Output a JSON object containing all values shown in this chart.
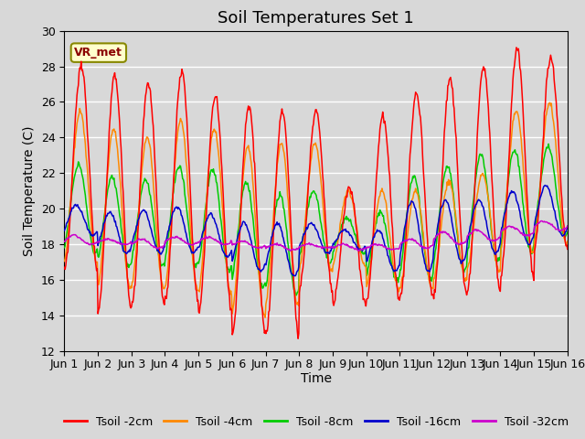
{
  "title": "Soil Temperatures Set 1",
  "xlabel": "Time",
  "ylabel": "Soil Temperature (C)",
  "ylim": [
    12,
    30
  ],
  "yticks": [
    12,
    14,
    16,
    18,
    20,
    22,
    24,
    26,
    28,
    30
  ],
  "xlim": [
    0,
    15
  ],
  "xtick_labels": [
    "Jun 1",
    "Jun 2",
    "Jun 3",
    "Jun 4",
    "Jun 5",
    "Jun 6",
    "Jun 7",
    "Jun 8",
    "Jun 9",
    "Jun 10",
    "Jun 11",
    "Jun 12",
    "Jun 13",
    "Jun 14",
    "Jun 15",
    "Jun 16"
  ],
  "annotation_text": "VR_met",
  "background_color": "#d8d8d8",
  "plot_bg_color": "#d8d8d8",
  "grid_color": "#ffffff",
  "series_colors": [
    "#ff0000",
    "#ff8800",
    "#00cc00",
    "#0000cc",
    "#cc00cc"
  ],
  "series_labels": [
    "Tsoil -2cm",
    "Tsoil -4cm",
    "Tsoil -8cm",
    "Tsoil -16cm",
    "Tsoil -32cm"
  ],
  "title_fontsize": 13,
  "label_fontsize": 10,
  "tick_fontsize": 9,
  "day_peaks_2cm": [
    28.0,
    27.5,
    27.0,
    27.7,
    26.3,
    25.8,
    25.5,
    25.5,
    21.2,
    25.2,
    26.5,
    27.3,
    28.0,
    29.0,
    28.5
  ],
  "day_mins_2cm": [
    16.5,
    14.3,
    14.5,
    14.8,
    14.2,
    13.0,
    12.9,
    15.5,
    14.7,
    14.8,
    15.0,
    15.2,
    15.4,
    16.2,
    17.8
  ],
  "day_peaks_4cm": [
    25.5,
    24.5,
    24.0,
    25.0,
    24.5,
    23.5,
    23.7,
    23.7,
    21.0,
    21.0,
    21.0,
    21.5,
    22.0,
    25.5,
    26.0
  ],
  "day_mins_4cm": [
    17.0,
    15.5,
    15.5,
    15.5,
    15.2,
    14.0,
    14.5,
    16.5,
    16.8,
    15.5,
    15.5,
    16.0,
    16.5,
    17.5,
    18.0
  ],
  "day_peaks_8cm": [
    22.5,
    21.8,
    21.6,
    22.4,
    22.2,
    21.5,
    20.8,
    21.0,
    19.5,
    19.8,
    21.8,
    22.4,
    23.0,
    23.3,
    23.5
  ],
  "day_mins_8cm": [
    17.5,
    16.8,
    16.8,
    16.8,
    16.5,
    15.6,
    15.2,
    17.0,
    17.5,
    16.0,
    16.0,
    16.5,
    17.0,
    17.5,
    18.5
  ],
  "day_peaks_16cm": [
    20.2,
    19.8,
    19.9,
    20.1,
    19.7,
    19.2,
    19.2,
    19.2,
    18.8,
    18.8,
    20.4,
    20.5,
    20.5,
    21.0,
    21.3
  ],
  "day_mins_16cm": [
    18.5,
    17.5,
    17.5,
    17.5,
    17.3,
    16.5,
    16.2,
    17.5,
    17.7,
    16.5,
    16.5,
    17.0,
    17.5,
    18.0,
    18.5
  ],
  "day_peaks_32cm": [
    18.5,
    18.3,
    18.3,
    18.4,
    18.4,
    18.2,
    18.0,
    18.0,
    18.0,
    18.0,
    18.3,
    18.7,
    18.8,
    19.0,
    19.3
  ],
  "day_mins_32cm": [
    18.0,
    18.0,
    17.8,
    18.0,
    18.0,
    17.8,
    17.7,
    17.8,
    17.7,
    17.7,
    17.8,
    18.0,
    18.2,
    18.5,
    18.8
  ]
}
